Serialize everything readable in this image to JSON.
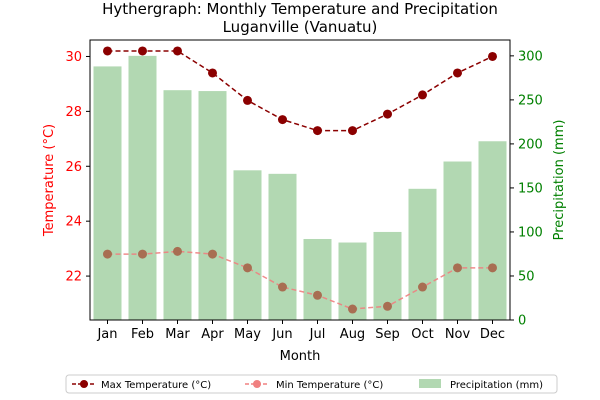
{
  "chart_data": {
    "type": "bar+line",
    "title": "Hythergraph: Monthly Temperature and Precipitation\nLuganville (Vanuatu)",
    "title_lines": [
      "Hythergraph: Monthly Temperature and Precipitation",
      "Luganville (Vanuatu)"
    ],
    "xlabel": "Month",
    "ylabel_left": "Temperature (°C)",
    "ylabel_right": "Precipitation (mm)",
    "categories": [
      "Jan",
      "Feb",
      "Mar",
      "Apr",
      "May",
      "Jun",
      "Jul",
      "Aug",
      "Sep",
      "Oct",
      "Nov",
      "Dec"
    ],
    "ylim_left": [
      20.4,
      30.6
    ],
    "yticks_left": [
      22,
      24,
      26,
      28,
      30
    ],
    "ylim_right": [
      0,
      318
    ],
    "yticks_right": [
      0,
      50,
      100,
      150,
      200,
      250,
      300
    ],
    "series": [
      {
        "name": "Max Temperature (°C)",
        "kind": "line",
        "axis": "left",
        "color": "#8b0000",
        "values": [
          30.2,
          30.2,
          30.2,
          29.4,
          28.4,
          27.7,
          27.3,
          27.3,
          27.9,
          28.6,
          29.4,
          30.0
        ]
      },
      {
        "name": "Min Temperature (°C)",
        "kind": "line",
        "axis": "left",
        "color": "#f08080",
        "values": [
          22.8,
          22.8,
          22.9,
          22.8,
          22.3,
          21.6,
          21.3,
          20.8,
          20.9,
          21.6,
          22.3,
          22.3
        ]
      },
      {
        "name": "Precipitation (mm)",
        "kind": "bar",
        "axis": "right",
        "color": "#b2d8b2",
        "values": [
          288,
          300,
          261,
          260,
          170,
          166,
          92,
          88,
          100,
          149,
          180,
          203
        ]
      }
    ],
    "left_axis_color": "#ff0000",
    "right_axis_color": "#008000",
    "legend_position": "bottom"
  }
}
